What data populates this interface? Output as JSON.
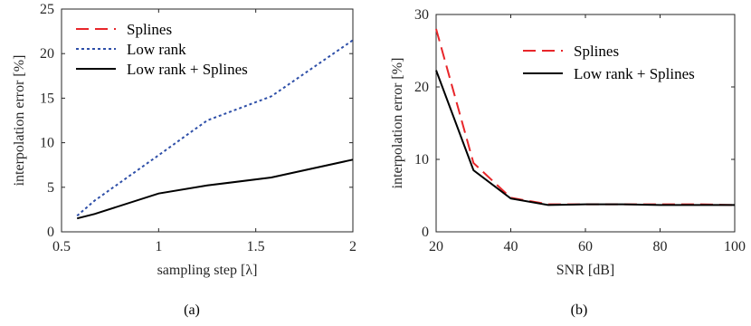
{
  "chart_data": [
    {
      "type": "line",
      "caption": "(a)",
      "xlabel": "sampling step [λ]",
      "ylabel": "interpolation error [%]",
      "xlim": [
        0.5,
        2
      ],
      "ylim": [
        0,
        25
      ],
      "xticks": [
        0.5,
        1,
        1.5,
        2
      ],
      "xtick_labels": [
        "0.5",
        "1",
        "1.5",
        "2"
      ],
      "yticks": [
        0,
        5,
        10,
        15,
        20,
        25
      ],
      "ytick_labels": [
        "0",
        "5",
        "10",
        "15",
        "20",
        "25"
      ],
      "grid": false,
      "legend_position": "top-left",
      "series": [
        {
          "name": "Splines",
          "color": "#e8262a",
          "dash": "dashed",
          "x": [],
          "y": []
        },
        {
          "name": "Low rank",
          "color": "#2e4fa8",
          "dash": "dotted",
          "x": [
            0.58,
            0.67,
            1.0,
            1.25,
            1.58,
            2.0
          ],
          "y": [
            1.8,
            3.5,
            8.6,
            12.5,
            15.2,
            21.5
          ]
        },
        {
          "name": "Low rank + Splines",
          "color": "#000000",
          "dash": "solid",
          "x": [
            0.58,
            0.67,
            1.0,
            1.25,
            1.58,
            2.0
          ],
          "y": [
            1.5,
            2.0,
            4.3,
            5.2,
            6.1,
            8.1
          ]
        }
      ]
    },
    {
      "type": "line",
      "caption": "(b)",
      "xlabel": "SNR [dB]",
      "ylabel": "interpolation error [%]",
      "xlim": [
        20,
        100
      ],
      "ylim": [
        0,
        30
      ],
      "xticks": [
        20,
        40,
        60,
        80,
        100
      ],
      "xtick_labels": [
        "20",
        "40",
        "60",
        "80",
        "100"
      ],
      "yticks": [
        0,
        10,
        20,
        30
      ],
      "ytick_labels": [
        "0",
        "10",
        "20",
        "30"
      ],
      "grid": false,
      "legend_position": "top-right",
      "series": [
        {
          "name": "Splines",
          "color": "#e8262a",
          "dash": "dashed",
          "x": [
            20,
            30,
            40,
            50,
            60,
            70,
            80,
            90,
            100
          ],
          "y": [
            28.0,
            9.5,
            4.7,
            3.8,
            3.8,
            3.8,
            3.8,
            3.8,
            3.7
          ]
        },
        {
          "name": "Low rank + Splines",
          "color": "#000000",
          "dash": "solid",
          "x": [
            20,
            30,
            40,
            50,
            60,
            70,
            80,
            90,
            100
          ],
          "y": [
            22.3,
            8.5,
            4.6,
            3.7,
            3.8,
            3.8,
            3.7,
            3.7,
            3.7
          ]
        }
      ]
    }
  ]
}
